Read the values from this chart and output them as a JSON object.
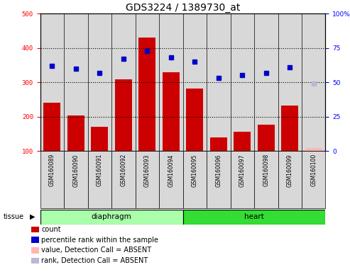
{
  "title": "GDS3224 / 1389730_at",
  "samples": [
    "GSM160089",
    "GSM160090",
    "GSM160091",
    "GSM160092",
    "GSM160093",
    "GSM160094",
    "GSM160095",
    "GSM160096",
    "GSM160097",
    "GSM160098",
    "GSM160099",
    "GSM160100"
  ],
  "count_values": [
    240,
    204,
    170,
    308,
    430,
    330,
    281,
    140,
    156,
    176,
    232,
    null
  ],
  "rank_values": [
    62,
    60,
    57,
    67,
    73,
    68,
    65,
    53,
    55,
    57,
    61,
    null
  ],
  "absent_count": [
    null,
    null,
    null,
    null,
    null,
    null,
    null,
    null,
    null,
    null,
    null,
    108
  ],
  "absent_rank": [
    null,
    null,
    null,
    null,
    null,
    null,
    null,
    null,
    null,
    null,
    null,
    49
  ],
  "tissue_groups": [
    {
      "label": "diaphragm",
      "start": 0,
      "end": 5,
      "color": "#aaffaa"
    },
    {
      "label": "heart",
      "start": 6,
      "end": 11,
      "color": "#33dd33"
    }
  ],
  "ylim_left": [
    100,
    500
  ],
  "ylim_right": [
    0,
    100
  ],
  "yticks_left": [
    100,
    200,
    300,
    400,
    500
  ],
  "yticks_right": [
    0,
    25,
    50,
    75,
    100
  ],
  "bar_color": "#cc0000",
  "rank_color": "#0000cc",
  "absent_bar_color": "#ffb6b6",
  "absent_rank_color": "#b8b8d8",
  "grid_color": "#000000",
  "col_bg_color": "#d8d8d8",
  "title_fontsize": 10,
  "tick_fontsize": 6.5,
  "label_fontsize": 8
}
